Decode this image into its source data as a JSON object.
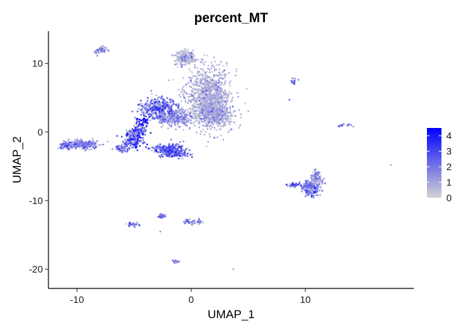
{
  "chart_data": {
    "type": "scatter",
    "title": "percent_MT",
    "xlabel": "UMAP_1",
    "ylabel": "UMAP_2",
    "xlim": [
      -12.5,
      19.5
    ],
    "ylim": [
      -22.8,
      14.7
    ],
    "x_ticks": [
      -10,
      0,
      10
    ],
    "y_ticks": [
      10,
      0,
      -10,
      -20
    ],
    "grid": false,
    "legend_position": "right",
    "colorbar": {
      "min": 0,
      "max": 4.5,
      "ticks": [
        0,
        1,
        2,
        3,
        4
      ],
      "low_color": "#d3d3d3",
      "high_color": "#0000ff"
    },
    "clusters": [
      {
        "cx": 1.5,
        "cy": 5.0,
        "sx": 1.8,
        "sy": 4.0,
        "n": 1100,
        "v": 0.25
      },
      {
        "cx": -0.5,
        "cy": 10.8,
        "sx": 0.8,
        "sy": 0.9,
        "n": 200,
        "v": 0.2
      },
      {
        "cx": 2.2,
        "cy": 2.5,
        "sx": 1.2,
        "sy": 1.2,
        "n": 350,
        "v": 0.3
      },
      {
        "cx": -2.8,
        "cy": 3.5,
        "sx": 1.6,
        "sy": 1.3,
        "n": 330,
        "v": 1.1
      },
      {
        "cx": -1.5,
        "cy": 2.0,
        "sx": 1.5,
        "sy": 1.0,
        "n": 260,
        "v": 0.6
      },
      {
        "cx": -4.2,
        "cy": 1.5,
        "sx": 0.5,
        "sy": 0.6,
        "n": 50,
        "v": 3.2
      },
      {
        "cx": -4.8,
        "cy": 0.0,
        "sx": 0.8,
        "sy": 0.8,
        "n": 110,
        "v": 1.3
      },
      {
        "cx": -5.0,
        "cy": -1.5,
        "sx": 0.8,
        "sy": 0.8,
        "n": 130,
        "v": 1.5
      },
      {
        "cx": -6.0,
        "cy": -2.5,
        "sx": 0.6,
        "sy": 0.5,
        "n": 60,
        "v": 0.8
      },
      {
        "cx": -2.0,
        "cy": -2.5,
        "sx": 1.2,
        "sy": 0.7,
        "n": 230,
        "v": 1.2
      },
      {
        "cx": -1.5,
        "cy": -3.2,
        "sx": 1.2,
        "sy": 0.4,
        "n": 140,
        "v": 1.0
      },
      {
        "cx": -9.5,
        "cy": -1.8,
        "sx": 1.2,
        "sy": 0.6,
        "n": 240,
        "v": 0.7
      },
      {
        "cx": -11.0,
        "cy": -2.0,
        "sx": 0.5,
        "sy": 0.5,
        "n": 60,
        "v": 0.9
      },
      {
        "cx": -7.8,
        "cy": 12.0,
        "sx": 0.4,
        "sy": 0.4,
        "n": 60,
        "v": 0.4
      },
      {
        "cx": -8.2,
        "cy": 11.6,
        "sx": 0.3,
        "sy": 0.3,
        "n": 20,
        "v": 0.4
      },
      {
        "cx": 10.5,
        "cy": -8.2,
        "sx": 0.8,
        "sy": 1.0,
        "n": 200,
        "v": 0.8
      },
      {
        "cx": 11.0,
        "cy": -6.5,
        "sx": 0.4,
        "sy": 1.0,
        "n": 80,
        "v": 0.6
      },
      {
        "cx": 9.0,
        "cy": -7.8,
        "sx": 0.5,
        "sy": 0.3,
        "n": 40,
        "v": 1.6
      },
      {
        "cx": -5.0,
        "cy": -13.5,
        "sx": 0.5,
        "sy": 0.3,
        "n": 30,
        "v": 1.2
      },
      {
        "cx": -2.6,
        "cy": -12.2,
        "sx": 0.3,
        "sy": 0.3,
        "n": 25,
        "v": 1.0
      },
      {
        "cx": 0.2,
        "cy": -13.1,
        "sx": 0.8,
        "sy": 0.3,
        "n": 40,
        "v": 0.9
      },
      {
        "cx": -1.3,
        "cy": -18.9,
        "sx": 0.3,
        "sy": 0.2,
        "n": 15,
        "v": 0.9
      },
      {
        "cx": 8.9,
        "cy": 7.3,
        "sx": 0.2,
        "sy": 0.5,
        "n": 12,
        "v": 1.2
      },
      {
        "cx": 13.5,
        "cy": 1.0,
        "sx": 0.5,
        "sy": 0.3,
        "n": 14,
        "v": 0.8
      }
    ],
    "singletons": [
      [
        -2.7,
        -14.5,
        0.8
      ],
      [
        3.7,
        -20.0,
        0.5
      ],
      [
        17.5,
        -4.8,
        0.5
      ],
      [
        8.6,
        4.7,
        1.5
      ],
      [
        9.4,
        7.6,
        1.0
      ],
      [
        14.2,
        0.8,
        0.6
      ],
      [
        -1.6,
        1.5,
        0.6
      ],
      [
        -3.5,
        6.0,
        0.8
      ],
      [
        5.0,
        3.0,
        0.4
      ]
    ]
  }
}
